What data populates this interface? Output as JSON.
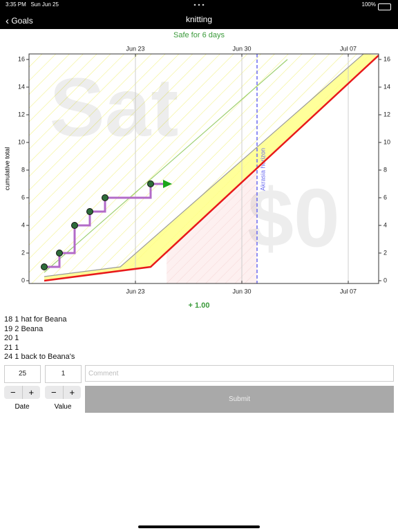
{
  "status_bar": {
    "time": "3:35 PM",
    "date": "Sun Jun 25",
    "battery": "100%"
  },
  "nav": {
    "back": "Goals",
    "title": "knitting"
  },
  "safe_message": "Safe for 6 days",
  "chart_data": {
    "type": "line",
    "ylabel": "cumulative total",
    "xlim": [
      "Jun 16",
      "Jul 09"
    ],
    "xticks": [
      "Jun 23",
      "Jun 30",
      "Jul 07"
    ],
    "ylim": [
      -0.2,
      16.4
    ],
    "yticks": [
      0,
      2,
      4,
      6,
      8,
      10,
      12,
      14,
      16
    ],
    "grid": true,
    "watermarks": [
      "Sat",
      "$0"
    ],
    "annotations": [
      {
        "x": "Jul 01",
        "label": "Akrasia horizon",
        "color": "#6a6af0"
      }
    ],
    "series": [
      {
        "role": "datapoints",
        "x": [
          "Jun 17",
          "Jun 18",
          "Jun 19",
          "Jun 20",
          "Jun 21",
          "Jun 24"
        ],
        "values": [
          1,
          2,
          4,
          5,
          6,
          7
        ],
        "color": "#b36bc8",
        "marker_color": "#2e6b3a",
        "step": "post"
      },
      {
        "role": "upper",
        "x": [
          "Jun 17",
          "Jun 22",
          "Jul 08"
        ],
        "values": [
          0.3,
          1,
          16.4
        ],
        "color": "#999999"
      },
      {
        "role": "trend",
        "x": [
          "Jun 17",
          "Jul 03"
        ],
        "values": [
          0.6,
          16
        ],
        "color": "#9ccf6e"
      },
      {
        "role": "road",
        "x": [
          "Jun 17",
          "Jun 24",
          "Jul 09"
        ],
        "values": [
          0,
          1,
          16.3
        ],
        "color": "#e8191b"
      }
    ]
  },
  "delta": "+ 1.00",
  "log": [
    "18 1 hat for Beana",
    "19 2 Beana",
    "20 1",
    "21 1",
    "24 1 back to Beana's"
  ],
  "form": {
    "date": "25",
    "value": "1",
    "comment_placeholder": "Comment",
    "stepper": [
      "−",
      "+"
    ],
    "date_label": "Date",
    "value_label": "Value",
    "submit": "Submit"
  }
}
